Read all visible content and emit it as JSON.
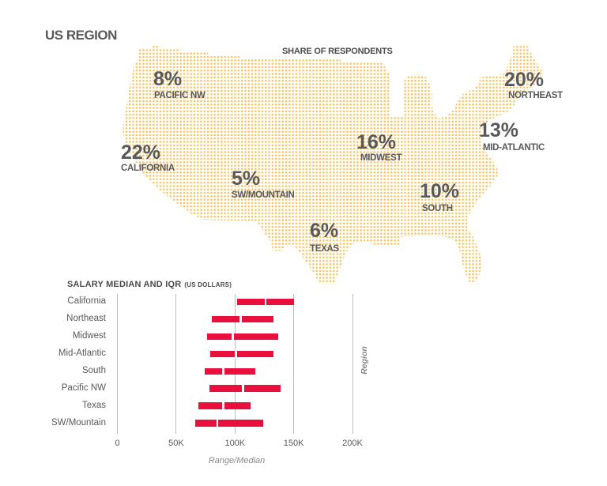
{
  "page": {
    "title": "US REGION"
  },
  "colors": {
    "map_dot": "#FAC35E",
    "bar": "#E9103D",
    "text": "#58595B",
    "gridline": "#BDBDBD"
  },
  "chart_data": [
    {
      "type": "bar",
      "title": "SHARE OF RESPONDENTS",
      "categories": [
        "PACIFIC NW",
        "NORTHEAST",
        "CALIFORNIA",
        "MIDWEST",
        "MID-ATLANTIC",
        "SW/MOUNTAIN",
        "SOUTH",
        "TEXAS"
      ],
      "values": [
        8,
        20,
        22,
        16,
        13,
        5,
        10,
        6
      ],
      "value_labels": [
        "8%",
        "20%",
        "22%",
        "16%",
        "13%",
        "5%",
        "10%",
        "6%"
      ],
      "unit": "%",
      "presentation": "dot-matrix US map with region labels"
    },
    {
      "type": "bar",
      "subtype": "range",
      "orientation": "horizontal",
      "title": "SALARY MEDIAN AND IQR",
      "title_unit": "(US DOLLARS)",
      "categories": [
        "California",
        "Northeast",
        "Midwest",
        "Mid-Atlantic",
        "South",
        "Pacific NW",
        "Texas",
        "SW/Mountain"
      ],
      "series": [
        {
          "name": "range_low",
          "values": [
            102000,
            80000,
            76000,
            79000,
            74000,
            78000,
            69000,
            66000
          ]
        },
        {
          "name": "median",
          "values": [
            126000,
            105000,
            98000,
            101000,
            90000,
            107000,
            90000,
            85000
          ]
        },
        {
          "name": "range_high",
          "values": [
            150000,
            133000,
            137000,
            133000,
            117000,
            139000,
            113000,
            124000
          ]
        }
      ],
      "xlabel": "Range/Median",
      "ylabel": "Region",
      "xlim": [
        0,
        200000
      ],
      "x_ticks": [
        0,
        50000,
        100000,
        150000,
        200000
      ],
      "x_tick_labels": [
        "0",
        "50K",
        "100K",
        "150K",
        "200K"
      ],
      "grid": true,
      "legend": null
    }
  ]
}
